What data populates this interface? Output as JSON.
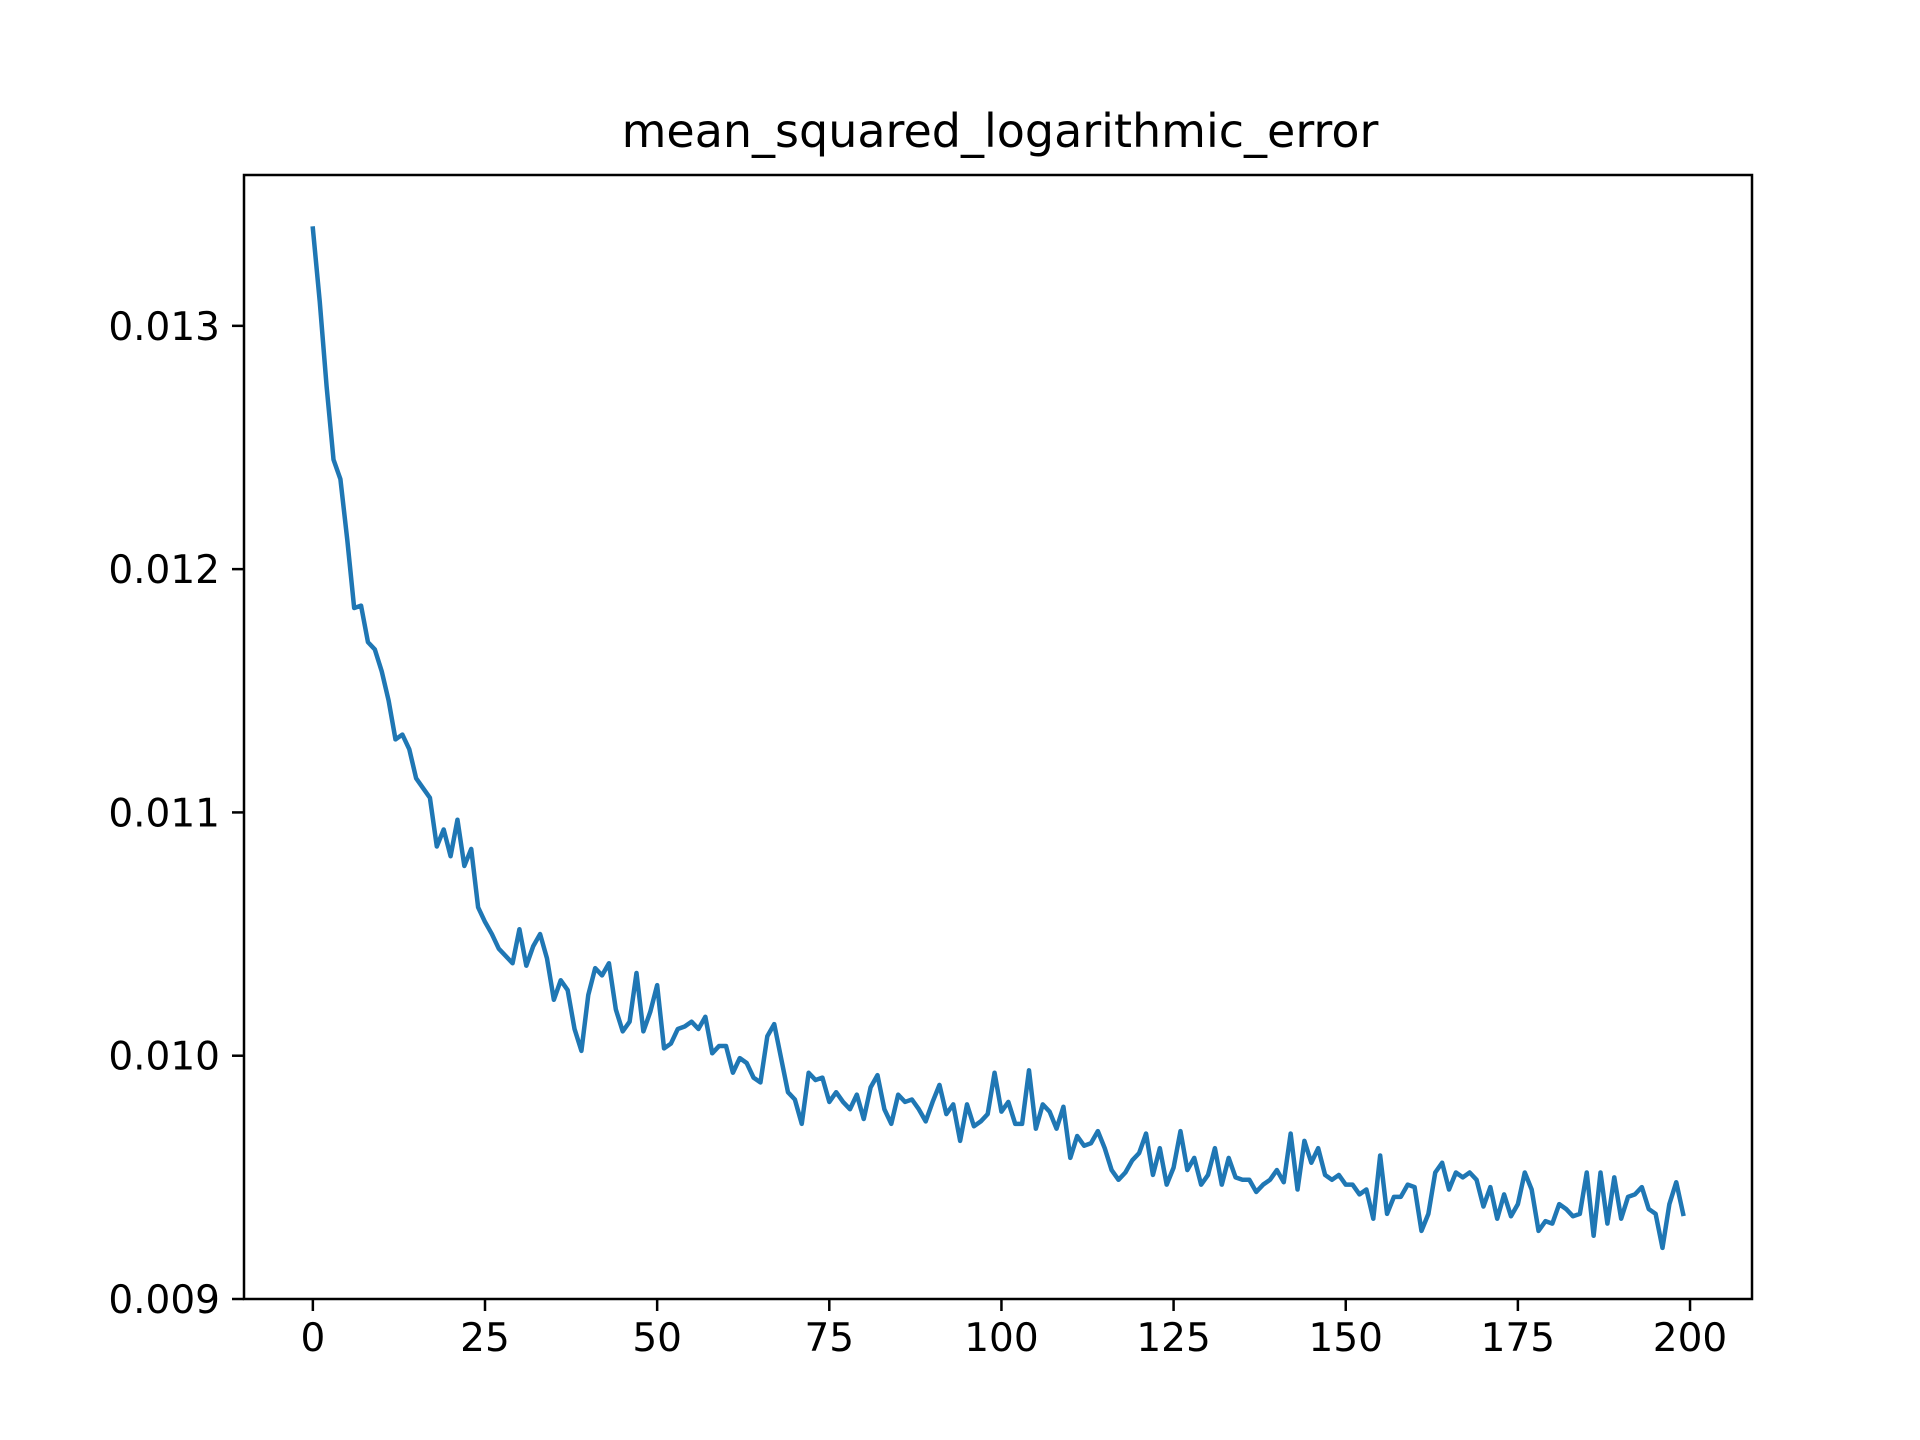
{
  "chart_data": {
    "type": "line",
    "title": "mean_squared_logarithmic_error",
    "xlabel": "",
    "ylabel": "",
    "xlim": [
      -10,
      209
    ],
    "ylim": [
      0.009,
      0.01362
    ],
    "x_ticks": [
      0,
      25,
      50,
      75,
      100,
      125,
      150,
      175,
      200
    ],
    "y_ticks": [
      0.009,
      0.01,
      0.011,
      0.012,
      0.013
    ],
    "y_tick_labels": [
      "0.009",
      "0.010",
      "0.011",
      "0.012",
      "0.013"
    ],
    "grid": false,
    "legend": "none",
    "line_color": "#1f77b4",
    "x_start": 0,
    "series": [
      {
        "values": [
          0.0134,
          0.0131,
          0.01275,
          0.01245,
          0.01237,
          0.01212,
          0.01184,
          0.01185,
          0.0117,
          0.01167,
          0.01158,
          0.01146,
          0.0113,
          0.01132,
          0.01126,
          0.01114,
          0.0111,
          0.01106,
          0.01086,
          0.01093,
          0.01082,
          0.01097,
          0.01078,
          0.01085,
          0.01061,
          0.01055,
          0.0105,
          0.01044,
          0.01041,
          0.01038,
          0.01052,
          0.01037,
          0.01045,
          0.0105,
          0.0104,
          0.01023,
          0.01031,
          0.01027,
          0.01011,
          0.01002,
          0.01025,
          0.01036,
          0.01033,
          0.01038,
          0.01019,
          0.0101,
          0.01014,
          0.01034,
          0.0101,
          0.01018,
          0.01029,
          0.01003,
          0.01005,
          0.01011,
          0.01012,
          0.01014,
          0.01011,
          0.01016,
          0.01001,
          0.01004,
          0.01004,
          0.00993,
          0.00999,
          0.00997,
          0.00991,
          0.00989,
          0.01008,
          0.01013,
          0.00999,
          0.00985,
          0.00982,
          0.00972,
          0.00993,
          0.0099,
          0.00991,
          0.00981,
          0.00985,
          0.00981,
          0.00978,
          0.00984,
          0.00974,
          0.00987,
          0.00992,
          0.00978,
          0.00972,
          0.00984,
          0.00981,
          0.00982,
          0.00978,
          0.00973,
          0.00981,
          0.00988,
          0.00976,
          0.0098,
          0.00965,
          0.0098,
          0.00971,
          0.00973,
          0.00976,
          0.00993,
          0.00977,
          0.00981,
          0.00972,
          0.00972,
          0.00994,
          0.0097,
          0.0098,
          0.00977,
          0.0097,
          0.00979,
          0.00958,
          0.00967,
          0.00963,
          0.00964,
          0.00969,
          0.00962,
          0.00953,
          0.00949,
          0.00952,
          0.00957,
          0.0096,
          0.00968,
          0.00951,
          0.00962,
          0.00947,
          0.00954,
          0.00969,
          0.00953,
          0.00958,
          0.00947,
          0.00951,
          0.00962,
          0.00947,
          0.00958,
          0.0095,
          0.00949,
          0.00949,
          0.00944,
          0.00947,
          0.00949,
          0.00953,
          0.00948,
          0.00968,
          0.00945,
          0.00965,
          0.00956,
          0.00962,
          0.00951,
          0.00949,
          0.00951,
          0.00947,
          0.00947,
          0.00943,
          0.00945,
          0.00933,
          0.00959,
          0.00935,
          0.00942,
          0.00942,
          0.00947,
          0.00946,
          0.00928,
          0.00935,
          0.00952,
          0.00956,
          0.00945,
          0.00952,
          0.0095,
          0.00952,
          0.00949,
          0.00938,
          0.00946,
          0.00933,
          0.00943,
          0.00934,
          0.00939,
          0.00952,
          0.00945,
          0.00928,
          0.00932,
          0.00931,
          0.00939,
          0.00937,
          0.00934,
          0.00935,
          0.00952,
          0.00926,
          0.00952,
          0.00931,
          0.0095,
          0.00933,
          0.00942,
          0.00943,
          0.00946,
          0.00937,
          0.00935,
          0.00921,
          0.00939,
          0.00948,
          0.00935
        ]
      }
    ]
  }
}
